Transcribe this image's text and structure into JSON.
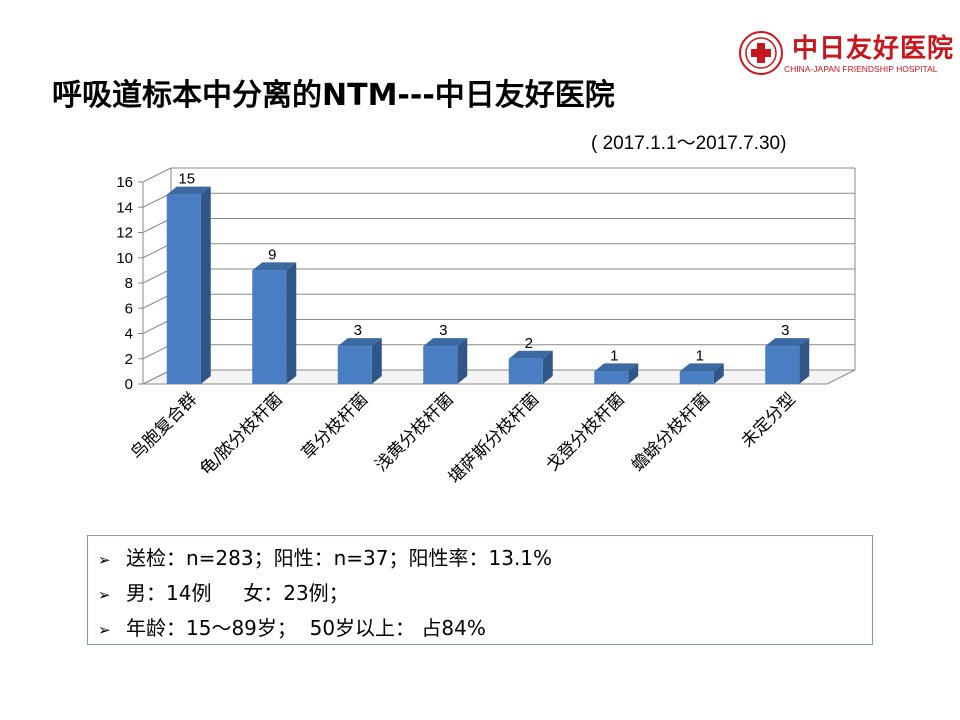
{
  "logo": {
    "name_cn": "中日友好医院",
    "name_en": "CHINA-JAPAN FRIENDSHIP HOSPITAL"
  },
  "title": "呼吸道标本中分离的NTM---中日友好医院",
  "subtitle": "( 2017.1.1～2017.7.30)",
  "chart_data": {
    "type": "bar",
    "categories": [
      "鸟胞复合群",
      "龟/脓分枝杆菌",
      "草分枝杆菌",
      "浅黄分枝杆菌",
      "堪萨斯分枝杆菌",
      "戈登分枝杆菌",
      "蟾蜍分枝杆菌",
      "未定分型"
    ],
    "values": [
      15,
      9,
      3,
      3,
      2,
      1,
      1,
      3
    ],
    "ylim": [
      0,
      16
    ],
    "yticks": [
      0,
      2,
      4,
      6,
      8,
      10,
      12,
      14,
      16
    ],
    "grid": true,
    "bar_color": "#4a7ec2",
    "data_labels": true
  },
  "info": {
    "lines": [
      "送检：n=283；阳性：n=37；阳性率：13.1%",
      "男：14例     女：23例；",
      "年龄：15～89岁；  50岁以上： 占84%"
    ]
  }
}
